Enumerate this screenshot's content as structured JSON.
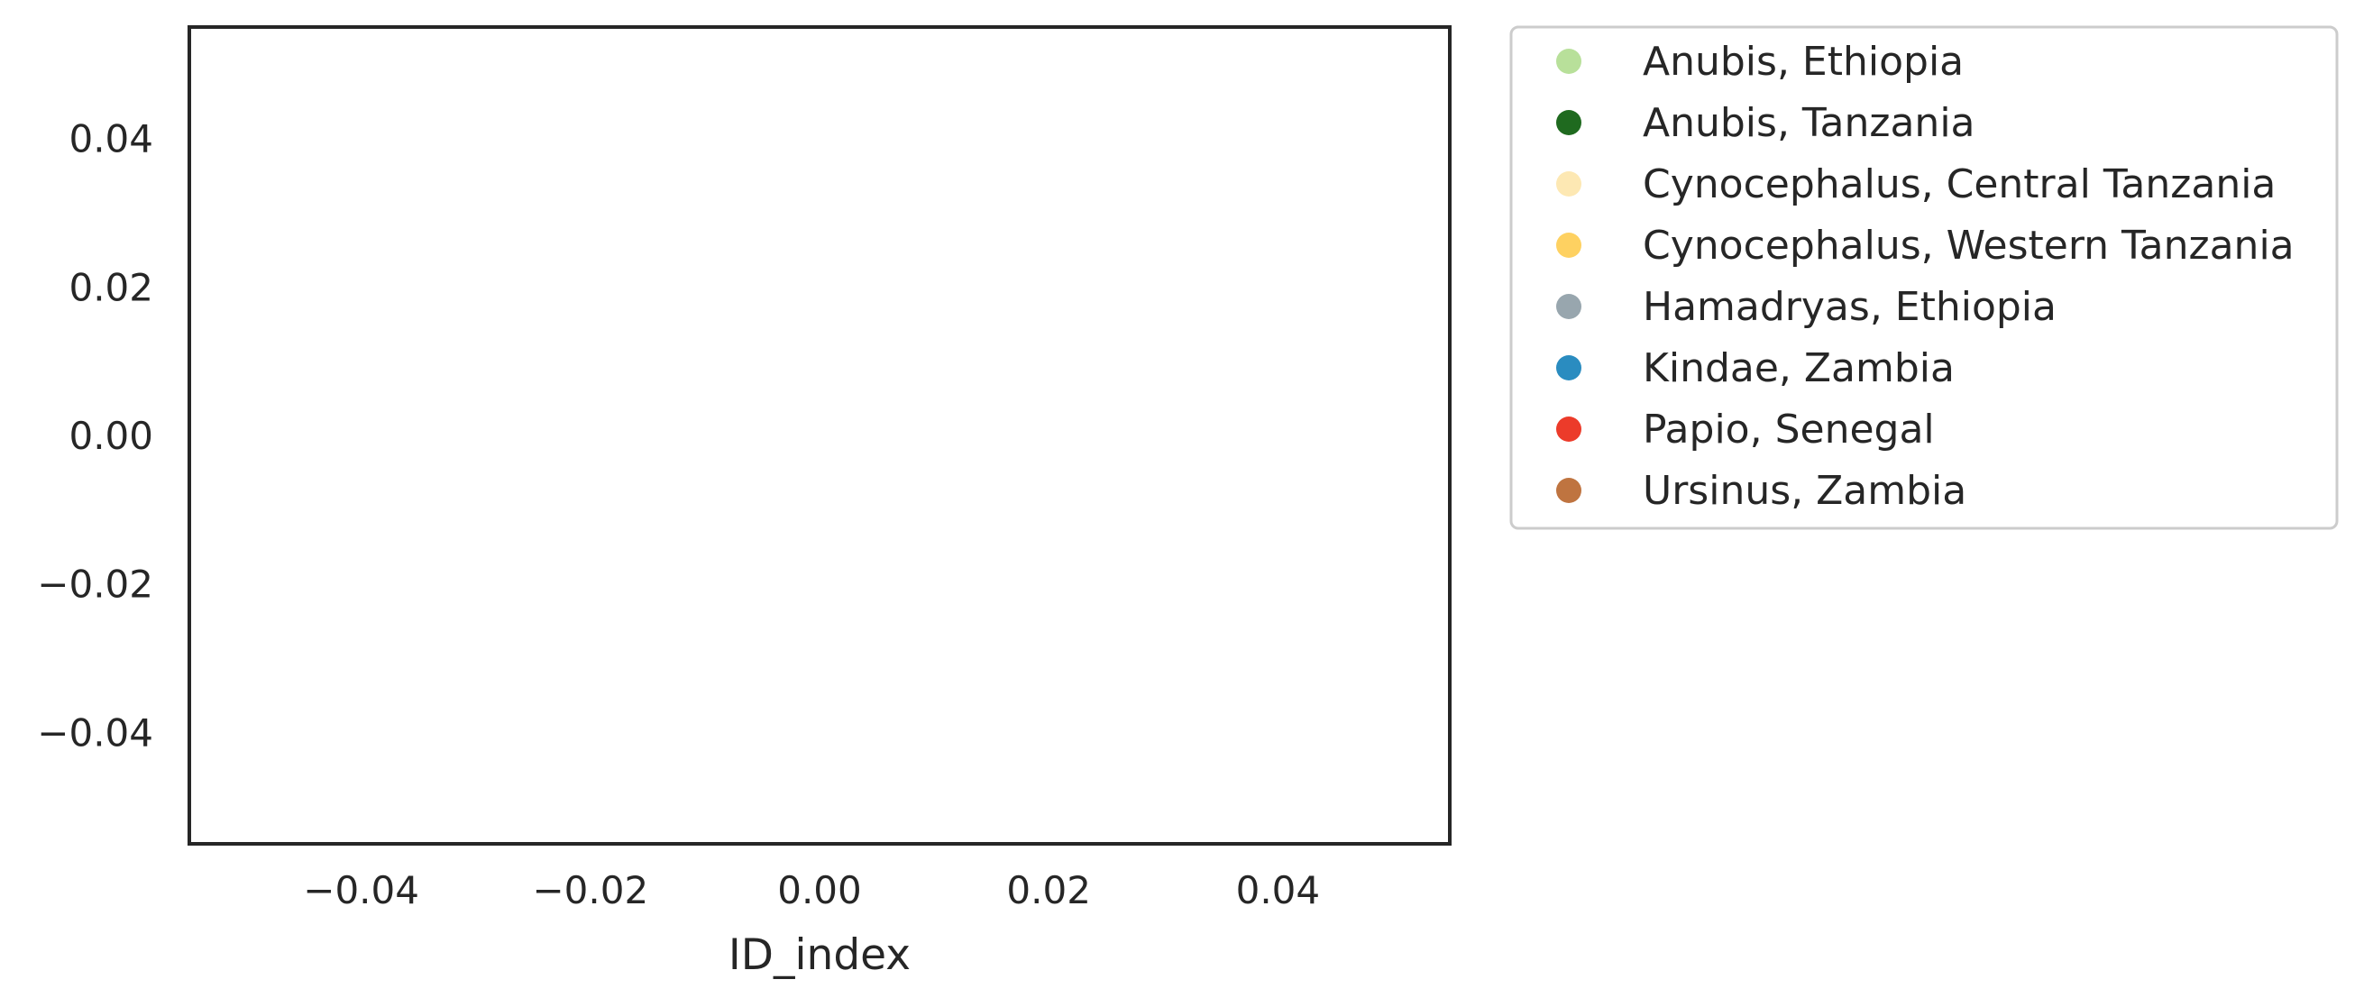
{
  "chart_data": {
    "type": "scatter",
    "title": "",
    "xlabel": "ID_index",
    "ylabel": "",
    "xlim": [
      -0.055,
      0.055
    ],
    "ylim": [
      -0.055,
      0.055
    ],
    "x_ticks": [
      -0.04,
      -0.02,
      0.0,
      0.02,
      0.04
    ],
    "y_ticks": [
      -0.04,
      -0.02,
      0.0,
      0.02,
      0.04
    ],
    "x_tick_labels": [
      "−0.04",
      "−0.02",
      "0.00",
      "0.02",
      "0.04"
    ],
    "y_tick_labels": [
      "−0.04",
      "−0.02",
      "0.00",
      "0.02",
      "0.04"
    ],
    "grid": false,
    "legend_placement": "outside-upper-right",
    "series": [
      {
        "name": "Anubis, Ethiopia",
        "color": "#b8e09a",
        "points": []
      },
      {
        "name": "Anubis, Tanzania",
        "color": "#1f6a1f",
        "points": []
      },
      {
        "name": "Cynocephalus, Central Tanzania",
        "color": "#fde8b3",
        "points": []
      },
      {
        "name": "Cynocephalus, Western Tanzania",
        "color": "#fed161",
        "points": []
      },
      {
        "name": "Hamadryas, Ethiopia",
        "color": "#98a6ae",
        "points": []
      },
      {
        "name": "Kindae, Zambia",
        "color": "#2a8cc0",
        "points": []
      },
      {
        "name": "Papio, Senegal",
        "color": "#ec3b2a",
        "points": []
      },
      {
        "name": "Ursinus, Zambia",
        "color": "#bf7440",
        "points": []
      }
    ]
  }
}
